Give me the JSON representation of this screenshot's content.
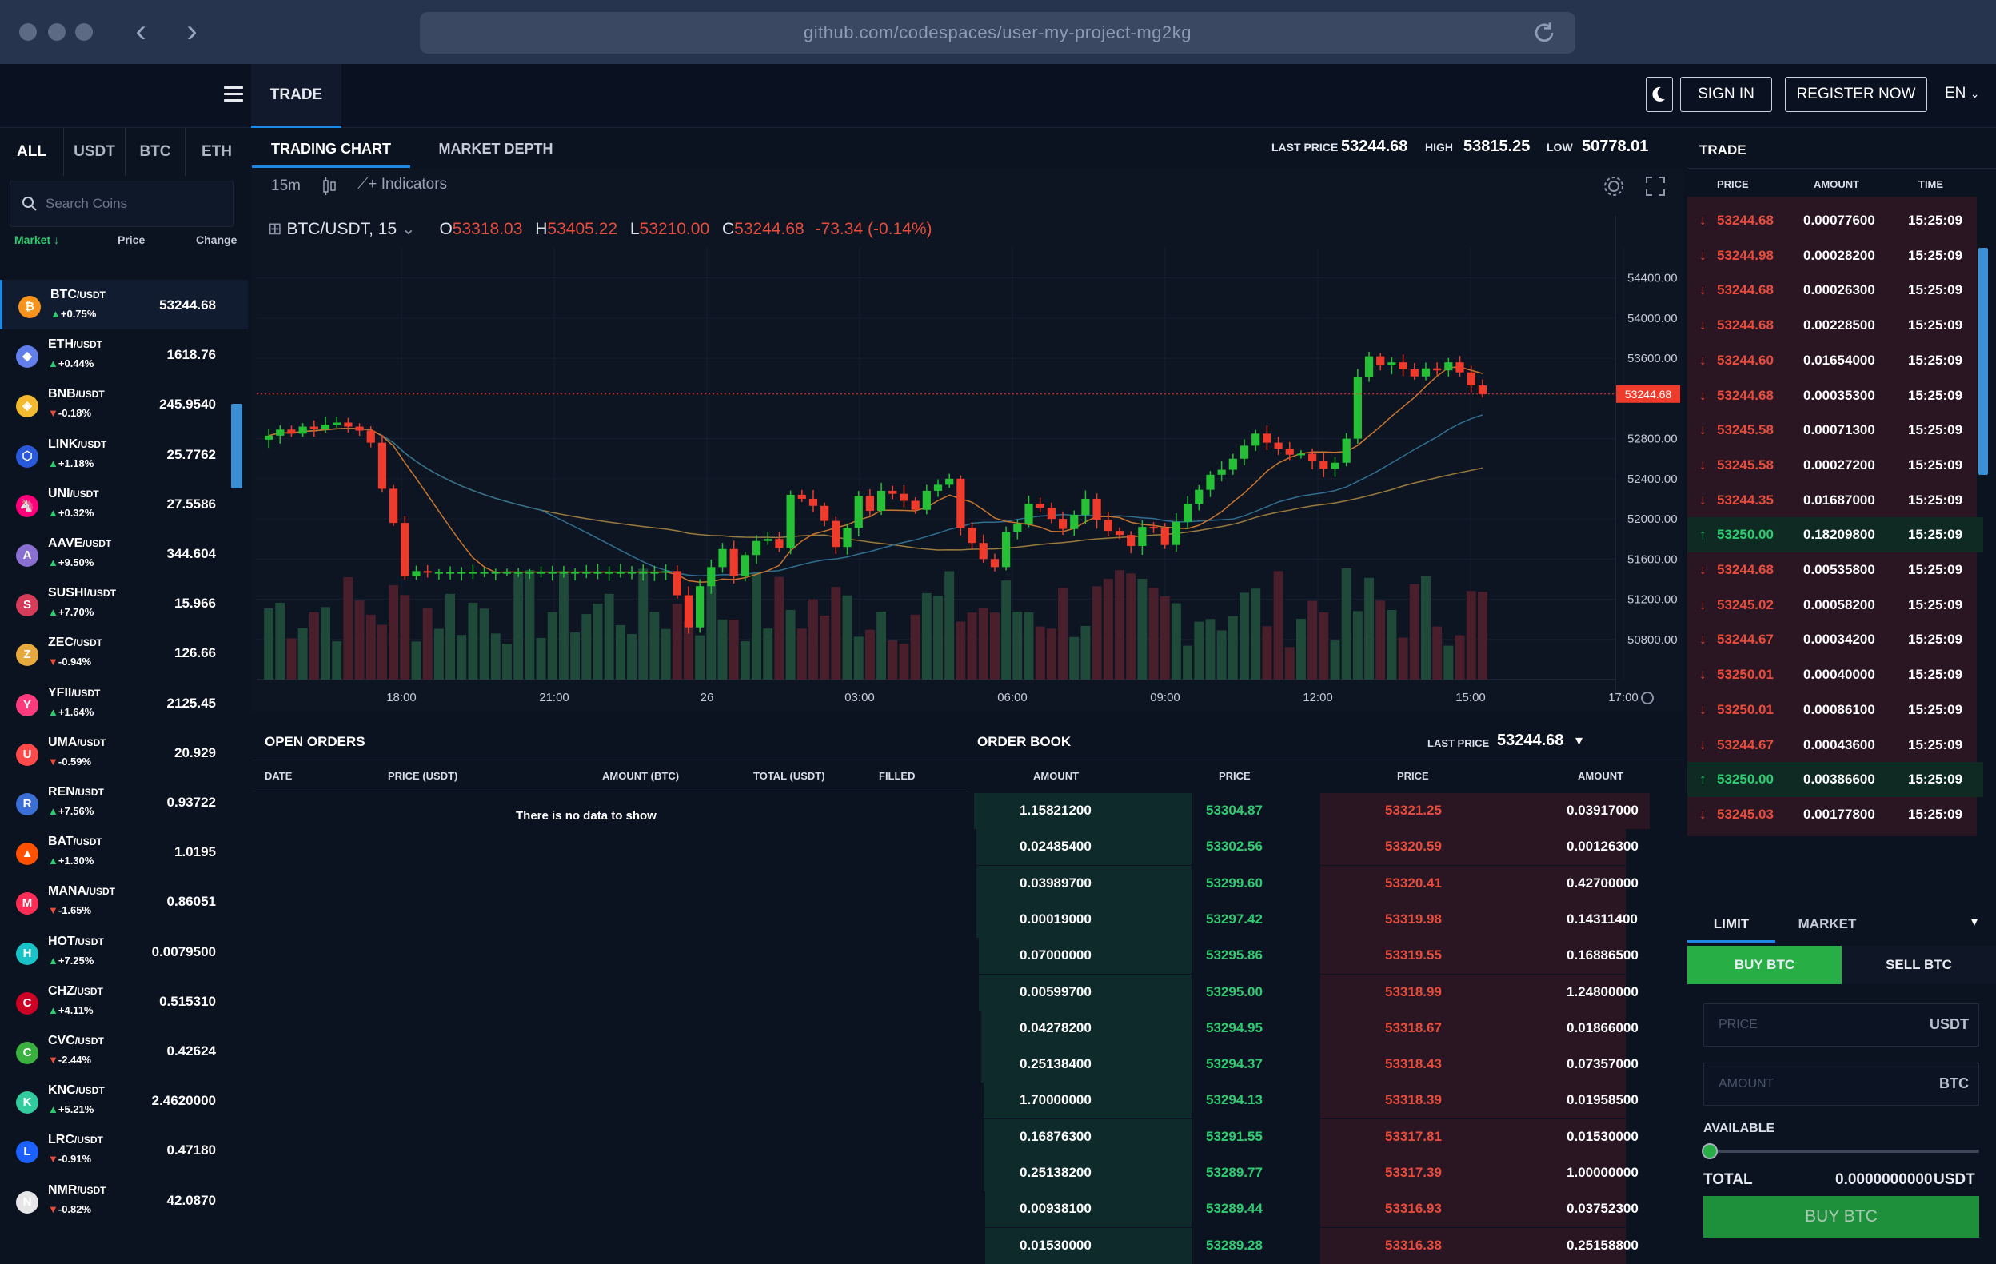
{
  "browser": {
    "url": "github.com/codespaces/user-my-project-mg2kg"
  },
  "header": {
    "tab_trade": "TRADE",
    "sign_in": "SIGN IN",
    "register": "REGISTER NOW",
    "language": "EN"
  },
  "market_tabs": [
    "ALL",
    "USDT",
    "BTC",
    "ETH"
  ],
  "search": {
    "placeholder": "Search Coins"
  },
  "coin_list_headers": {
    "market": "Market",
    "price": "Price",
    "change": "Change"
  },
  "coins": [
    {
      "sym": "BTC",
      "quote": "/USDT",
      "change": "+0.75%",
      "dir": "up",
      "price": "53244.68",
      "color": "#f7931a",
      "glyph": "₿"
    },
    {
      "sym": "ETH",
      "quote": "/USDT",
      "change": "+0.44%",
      "dir": "up",
      "price": "1618.76",
      "color": "#627eea",
      "glyph": "◆"
    },
    {
      "sym": "BNB",
      "quote": "/USDT",
      "change": "-0.18%",
      "dir": "dn",
      "price": "245.9540",
      "color": "#f3ba2f",
      "glyph": "◈"
    },
    {
      "sym": "LINK",
      "quote": "/USDT",
      "change": "+1.18%",
      "dir": "up",
      "price": "25.7762",
      "color": "#2a5ada",
      "glyph": "⬡"
    },
    {
      "sym": "UNI",
      "quote": "/USDT",
      "change": "+0.32%",
      "dir": "up",
      "price": "27.5586",
      "color": "#ff007a",
      "glyph": "🦄"
    },
    {
      "sym": "AAVE",
      "quote": "/USDT",
      "change": "+9.50%",
      "dir": "up",
      "price": "344.604",
      "color": "#8a6fd3",
      "glyph": "A"
    },
    {
      "sym": "SUSHI",
      "quote": "/USDT",
      "change": "+7.70%",
      "dir": "up",
      "price": "15.966",
      "color": "#d43c5a",
      "glyph": "S"
    },
    {
      "sym": "ZEC",
      "quote": "/USDT",
      "change": "-0.94%",
      "dir": "dn",
      "price": "126.66",
      "color": "#e5a93c",
      "glyph": "Z"
    },
    {
      "sym": "YFII",
      "quote": "/USDT",
      "change": "+1.64%",
      "dir": "up",
      "price": "2125.45",
      "color": "#ff3b7e",
      "glyph": "Y"
    },
    {
      "sym": "UMA",
      "quote": "/USDT",
      "change": "-0.59%",
      "dir": "dn",
      "price": "20.929",
      "color": "#ff4a4a",
      "glyph": "U"
    },
    {
      "sym": "REN",
      "quote": "/USDT",
      "change": "+7.56%",
      "dir": "up",
      "price": "0.93722",
      "color": "#3b6fd6",
      "glyph": "R"
    },
    {
      "sym": "BAT",
      "quote": "/USDT",
      "change": "+1.30%",
      "dir": "up",
      "price": "1.0195",
      "color": "#ff5000",
      "glyph": "▲"
    },
    {
      "sym": "MANA",
      "quote": "/USDT",
      "change": "-1.65%",
      "dir": "dn",
      "price": "0.86051",
      "color": "#ff2d55",
      "glyph": "M"
    },
    {
      "sym": "HOT",
      "quote": "/USDT",
      "change": "+7.25%",
      "dir": "up",
      "price": "0.0079500",
      "color": "#19c2c6",
      "glyph": "H"
    },
    {
      "sym": "CHZ",
      "quote": "/USDT",
      "change": "+4.11%",
      "dir": "up",
      "price": "0.515310",
      "color": "#cd0124",
      "glyph": "C"
    },
    {
      "sym": "CVC",
      "quote": "/USDT",
      "change": "-2.44%",
      "dir": "dn",
      "price": "0.42624",
      "color": "#3ab03e",
      "glyph": "C"
    },
    {
      "sym": "KNC",
      "quote": "/USDT",
      "change": "+5.21%",
      "dir": "up",
      "price": "2.4620000",
      "color": "#31cb9e",
      "glyph": "K"
    },
    {
      "sym": "LRC",
      "quote": "/USDT",
      "change": "-0.91%",
      "dir": "dn",
      "price": "0.47180",
      "color": "#1c60ff",
      "glyph": "L"
    },
    {
      "sym": "NMR",
      "quote": "/USDT",
      "change": "-0.82%",
      "dir": "dn",
      "price": "42.0870",
      "color": "#e6e6e6",
      "glyph": "N"
    }
  ],
  "chart_tabs": {
    "trading_chart": "TRADING CHART",
    "market_depth": "MARKET DEPTH"
  },
  "stats": {
    "last_label": "LAST PRICE",
    "last": "53244.68",
    "high_label": "HIGH",
    "high": "53815.25",
    "low_label": "LOW",
    "low": "50778.01"
  },
  "toolbar": {
    "interval": "15m",
    "indicators": "Indicators"
  },
  "legend": {
    "pair": "BTC/USDT, 15",
    "o_label": "O",
    "o": "53318.03",
    "h_label": "H",
    "h": "53405.22",
    "l_label": "L",
    "l": "53210.00",
    "c_label": "C",
    "c": "53244.68",
    "change": "-73.34 (-0.14%)"
  },
  "chart_data": {
    "type": "candlestick",
    "title": "BTC/USDT, 15",
    "y_ticks": [
      54400,
      54000,
      53600,
      52800,
      52400,
      52000,
      51600,
      51200,
      50800
    ],
    "y_tick_labels": [
      "54400.00",
      "54000.00",
      "53600.00",
      "52800.00",
      "52400.00",
      "52000.00",
      "51600.00",
      "51200.00",
      "50800.00"
    ],
    "ylim": [
      50400,
      54700
    ],
    "x_labels": [
      "18:00",
      "21:00",
      "26",
      "03:00",
      "06:00",
      "09:00",
      "12:00",
      "15:00",
      "17:00"
    ],
    "current_price": 53244.68,
    "current_price_label": "53244.68",
    "close_series": [
      52830,
      52890,
      52850,
      52920,
      52900,
      52940,
      52960,
      52920,
      52880,
      52760,
      52300,
      51960,
      51430,
      51480,
      51470,
      51470,
      51470,
      51470,
      51470,
      51470,
      51470,
      51470,
      51470,
      51470,
      51470,
      51470,
      51470,
      51470,
      51470,
      51470,
      51470,
      51470,
      51470,
      51470,
      51470,
      51480,
      51240,
      50920,
      51330,
      51520,
      51700,
      51430,
      51640,
      51780,
      51800,
      51710,
      52240,
      52200,
      52130,
      51980,
      51720,
      51910,
      52230,
      52080,
      52280,
      52250,
      52180,
      52090,
      52280,
      52340,
      52400,
      51910,
      51760,
      51600,
      51520,
      51870,
      51950,
      52150,
      52110,
      52000,
      51900,
      52040,
      52200,
      51990,
      51880,
      51840,
      51730,
      51920,
      51910,
      51740,
      51970,
      52150,
      52290,
      52440,
      52490,
      52600,
      52730,
      52850,
      52760,
      52700,
      52640,
      52650,
      52580,
      52500,
      52560,
      52800,
      53410,
      53620,
      53530,
      53560,
      53490,
      53420,
      53500,
      53480,
      53560,
      53460,
      53330,
      53244.68
    ],
    "volume_note": "volume bars below candles",
    "grid": true
  },
  "open_orders": {
    "title": "OPEN ORDERS",
    "headers": [
      "DATE",
      "PRICE (USDT)",
      "AMOUNT (BTC)",
      "TOTAL (USDT)",
      "FILLED"
    ],
    "empty": "There is no data to show"
  },
  "order_book": {
    "title": "ORDER BOOK",
    "last_label": "LAST PRICE",
    "last": "53244.68",
    "headers": [
      "AMOUNT",
      "PRICE",
      "PRICE",
      "AMOUNT"
    ],
    "rows": [
      [
        "1.15821200",
        "53304.87",
        "53321.25",
        "0.03917000"
      ],
      [
        "0.02485400",
        "53302.56",
        "53320.59",
        "0.00126300"
      ],
      [
        "0.03989700",
        "53299.60",
        "53320.41",
        "0.42700000"
      ],
      [
        "0.00019000",
        "53297.42",
        "53319.98",
        "0.14311400"
      ],
      [
        "0.07000000",
        "53295.86",
        "53319.55",
        "0.16886500"
      ],
      [
        "0.00599700",
        "53295.00",
        "53318.99",
        "1.24800000"
      ],
      [
        "0.04278200",
        "53294.95",
        "53318.67",
        "0.01866000"
      ],
      [
        "0.25138400",
        "53294.37",
        "53318.43",
        "0.07357000"
      ],
      [
        "1.70000000",
        "53294.13",
        "53318.39",
        "0.01958500"
      ],
      [
        "0.16876300",
        "53291.55",
        "53317.81",
        "0.01530000"
      ],
      [
        "0.25138200",
        "53289.77",
        "53317.39",
        "1.00000000"
      ],
      [
        "0.00938100",
        "53289.44",
        "53316.93",
        "0.03752300"
      ],
      [
        "0.01530000",
        "53289.28",
        "53316.38",
        "0.25158800"
      ]
    ]
  },
  "trades": {
    "title": "TRADE",
    "headers": [
      "PRICE",
      "AMOUNT",
      "TIME"
    ],
    "rows": [
      {
        "dir": "dn",
        "price": "53244.68",
        "amount": "0.00077600",
        "time": "15:25:09"
      },
      {
        "dir": "dn",
        "price": "53244.98",
        "amount": "0.00028200",
        "time": "15:25:09"
      },
      {
        "dir": "dn",
        "price": "53244.68",
        "amount": "0.00026300",
        "time": "15:25:09"
      },
      {
        "dir": "dn",
        "price": "53244.68",
        "amount": "0.00228500",
        "time": "15:25:09"
      },
      {
        "dir": "dn",
        "price": "53244.60",
        "amount": "0.01654000",
        "time": "15:25:09"
      },
      {
        "dir": "dn",
        "price": "53244.68",
        "amount": "0.00035300",
        "time": "15:25:09"
      },
      {
        "dir": "dn",
        "price": "53245.58",
        "amount": "0.00071300",
        "time": "15:25:09"
      },
      {
        "dir": "dn",
        "price": "53245.58",
        "amount": "0.00027200",
        "time": "15:25:09"
      },
      {
        "dir": "dn",
        "price": "53244.35",
        "amount": "0.01687000",
        "time": "15:25:09"
      },
      {
        "dir": "up",
        "price": "53250.00",
        "amount": "0.18209800",
        "time": "15:25:09"
      },
      {
        "dir": "dn",
        "price": "53244.68",
        "amount": "0.00535800",
        "time": "15:25:09"
      },
      {
        "dir": "dn",
        "price": "53245.02",
        "amount": "0.00058200",
        "time": "15:25:09"
      },
      {
        "dir": "dn",
        "price": "53244.67",
        "amount": "0.00034200",
        "time": "15:25:09"
      },
      {
        "dir": "dn",
        "price": "53250.01",
        "amount": "0.00040000",
        "time": "15:25:09"
      },
      {
        "dir": "dn",
        "price": "53250.01",
        "amount": "0.00086100",
        "time": "15:25:09"
      },
      {
        "dir": "dn",
        "price": "53244.67",
        "amount": "0.00043600",
        "time": "15:25:09"
      },
      {
        "dir": "up",
        "price": "53250.00",
        "amount": "0.00386600",
        "time": "15:25:09"
      },
      {
        "dir": "dn",
        "price": "53245.03",
        "amount": "0.00177800",
        "time": "15:25:09"
      }
    ]
  },
  "order_form": {
    "tab_limit": "LIMIT",
    "tab_market": "MARKET",
    "buy_tab": "BUY BTC",
    "sell_tab": "SELL BTC",
    "price_placeholder": "PRICE",
    "price_unit": "USDT",
    "amount_placeholder": "AMOUNT",
    "amount_unit": "BTC",
    "available": "AVAILABLE",
    "total_label": "TOTAL",
    "total_value": "0.0000000000",
    "total_unit": "USDT",
    "submit": "BUY BTC"
  },
  "colors": {
    "green": "#2ecc71",
    "red": "#e74c3c",
    "accent": "#1e88e5",
    "bg": "#0b1220"
  }
}
